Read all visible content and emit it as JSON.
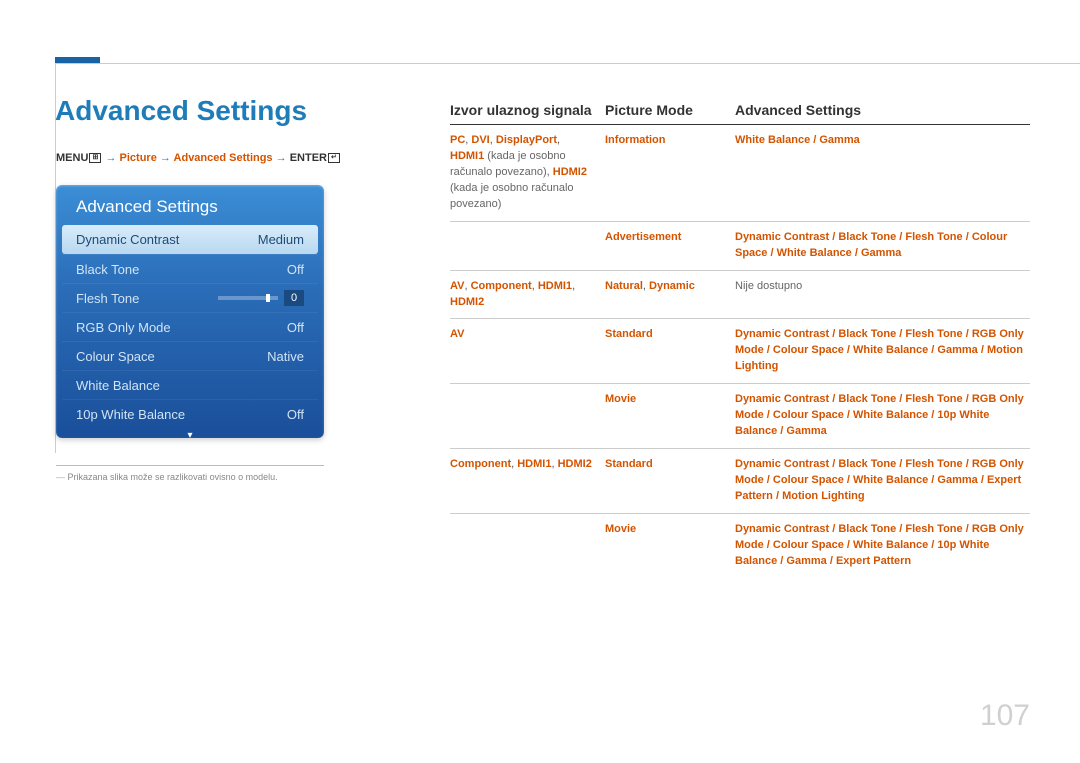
{
  "page": {
    "title": "Advanced Settings",
    "page_number": "107",
    "footnote": "Prikazana slika može se razlikovati ovisno o modelu."
  },
  "breadcrumb": {
    "menu": "MENU",
    "arrow": " → ",
    "picture": "Picture",
    "advanced": "Advanced Settings",
    "enter": "ENTER"
  },
  "panel": {
    "title": "Advanced Settings",
    "rows": [
      {
        "label": "Dynamic Contrast",
        "value": "Medium",
        "selected": true
      },
      {
        "label": "Black Tone",
        "value": "Off"
      },
      {
        "label": "Flesh Tone",
        "value": "0",
        "slider": true
      },
      {
        "label": "RGB Only Mode",
        "value": "Off"
      },
      {
        "label": "Colour Space",
        "value": "Native"
      },
      {
        "label": "White Balance",
        "value": ""
      },
      {
        "label": "10p White Balance",
        "value": "Off"
      }
    ]
  },
  "table": {
    "headers": {
      "c1": "Izvor ulaznog signala",
      "c2": "Picture Mode",
      "c3": "Advanced Settings"
    },
    "rows": [
      {
        "c1_html": "<span class='orange-b'>PC</span>, <span class='orange-b'>DVI</span>, <span class='orange-b'>DisplayPort</span>, <span class='orange-b'>HDMI1</span> <span class='gray-t'>(kada je osobno računalo povezano)</span>, <span class='orange-b'>HDMI2</span> <span class='gray-t'>(kada je osobno računalo povezano)</span>",
        "sub": [
          {
            "c2": "<span class='orange-b'>Information</span>",
            "c3": "<span class='orange-b'>White Balance</span> <span class='sep'>/</span> <span class='orange-b'>Gamma</span>"
          },
          {
            "c2": "<span class='orange-b'>Advertisement</span>",
            "c3": "<span class='orange-b'>Dynamic Contrast</span> <span class='sep'>/</span> <span class='orange-b'>Black Tone</span> <span class='sep'>/</span> <span class='orange-b'>Flesh Tone</span> <span class='sep'>/</span> <span class='orange-b'>Colour Space</span> <span class='sep'>/</span> <span class='orange-b'>White Balance</span> <span class='sep'>/</span> <span class='orange-b'>Gamma</span>"
          }
        ]
      },
      {
        "c1_html": "<span class='orange-b'>AV</span>, <span class='orange-b'>Component</span>, <span class='orange-b'>HDMI1</span>, <span class='orange-b'>HDMI2</span>",
        "sub": [
          {
            "c2": "<span class='orange-b'>Natural</span>, <span class='orange-b'>Dynamic</span>",
            "c3": "<span class='gray-t'>Nije dostupno</span>"
          }
        ]
      },
      {
        "c1_html": "<span class='orange-b'>AV</span>",
        "sub": [
          {
            "c2": "<span class='orange-b'>Standard</span>",
            "c3": "<span class='orange-b'>Dynamic Contrast</span> <span class='sep'>/</span> <span class='orange-b'>Black Tone</span> <span class='sep'>/</span> <span class='orange-b'>Flesh Tone</span> <span class='sep'>/</span> <span class='orange-b'>RGB Only Mode</span> <span class='sep'>/</span> <span class='orange-b'>Colour Space</span> <span class='sep'>/</span> <span class='orange-b'>White Balance</span> <span class='sep'>/</span> <span class='orange-b'>Gamma</span> <span class='sep'>/</span> <span class='orange-b'>Motion Lighting</span>"
          },
          {
            "c2": "<span class='orange-b'>Movie</span>",
            "c3": "<span class='orange-b'>Dynamic Contrast</span> <span class='sep'>/</span> <span class='orange-b'>Black Tone</span> <span class='sep'>/</span> <span class='orange-b'>Flesh Tone</span> <span class='sep'>/</span> <span class='orange-b'>RGB Only Mode</span> <span class='sep'>/</span> <span class='orange-b'>Colour Space</span> <span class='sep'>/</span> <span class='orange-b'>White Balance</span> <span class='sep'>/</span> <span class='orange-b'>10p White Balance</span> <span class='sep'>/</span> <span class='orange-b'>Gamma</span>"
          }
        ]
      },
      {
        "c1_html": "<span class='orange-b'>Component</span>, <span class='orange-b'>HDMI1</span>, <span class='orange-b'>HDMI2</span>",
        "sub": [
          {
            "c2": "<span class='orange-b'>Standard</span>",
            "c3": "<span class='orange-b'>Dynamic Contrast</span> <span class='sep'>/</span> <span class='orange-b'>Black Tone</span> <span class='sep'>/</span> <span class='orange-b'>Flesh Tone</span> <span class='sep'>/</span> <span class='orange-b'>RGB Only Mode</span> <span class='sep'>/</span> <span class='orange-b'>Colour Space</span> <span class='sep'>/</span> <span class='orange-b'>White Balance</span> <span class='sep'>/</span> <span class='orange-b'>Gamma</span> <span class='sep'>/</span> <span class='orange-b'>Expert Pattern</span> <span class='sep'>/</span> <span class='orange-b'>Motion Lighting</span>"
          },
          {
            "c2": "<span class='orange-b'>Movie</span>",
            "c3": "<span class='orange-b'>Dynamic Contrast</span> <span class='sep'>/</span> <span class='orange-b'>Black Tone</span> <span class='sep'>/</span> <span class='orange-b'>Flesh Tone</span> <span class='sep'>/</span> <span class='orange-b'>RGB Only Mode</span> <span class='sep'>/</span> <span class='orange-b'>Colour Space</span> <span class='sep'>/</span> <span class='orange-b'>White Balance</span> <span class='sep'>/</span> <span class='orange-b'>10p White Balance</span> <span class='sep'>/</span> <span class='orange-b'>Gamma</span> <span class='sep'>/</span> <span class='orange-b'>Expert Pattern</span>"
          }
        ]
      }
    ]
  },
  "colors": {
    "title_blue": "#1e7db8",
    "orange": "#d35400",
    "panel_grad_top": "#3b8ed6",
    "panel_grad_bot": "#1a4f9a"
  }
}
